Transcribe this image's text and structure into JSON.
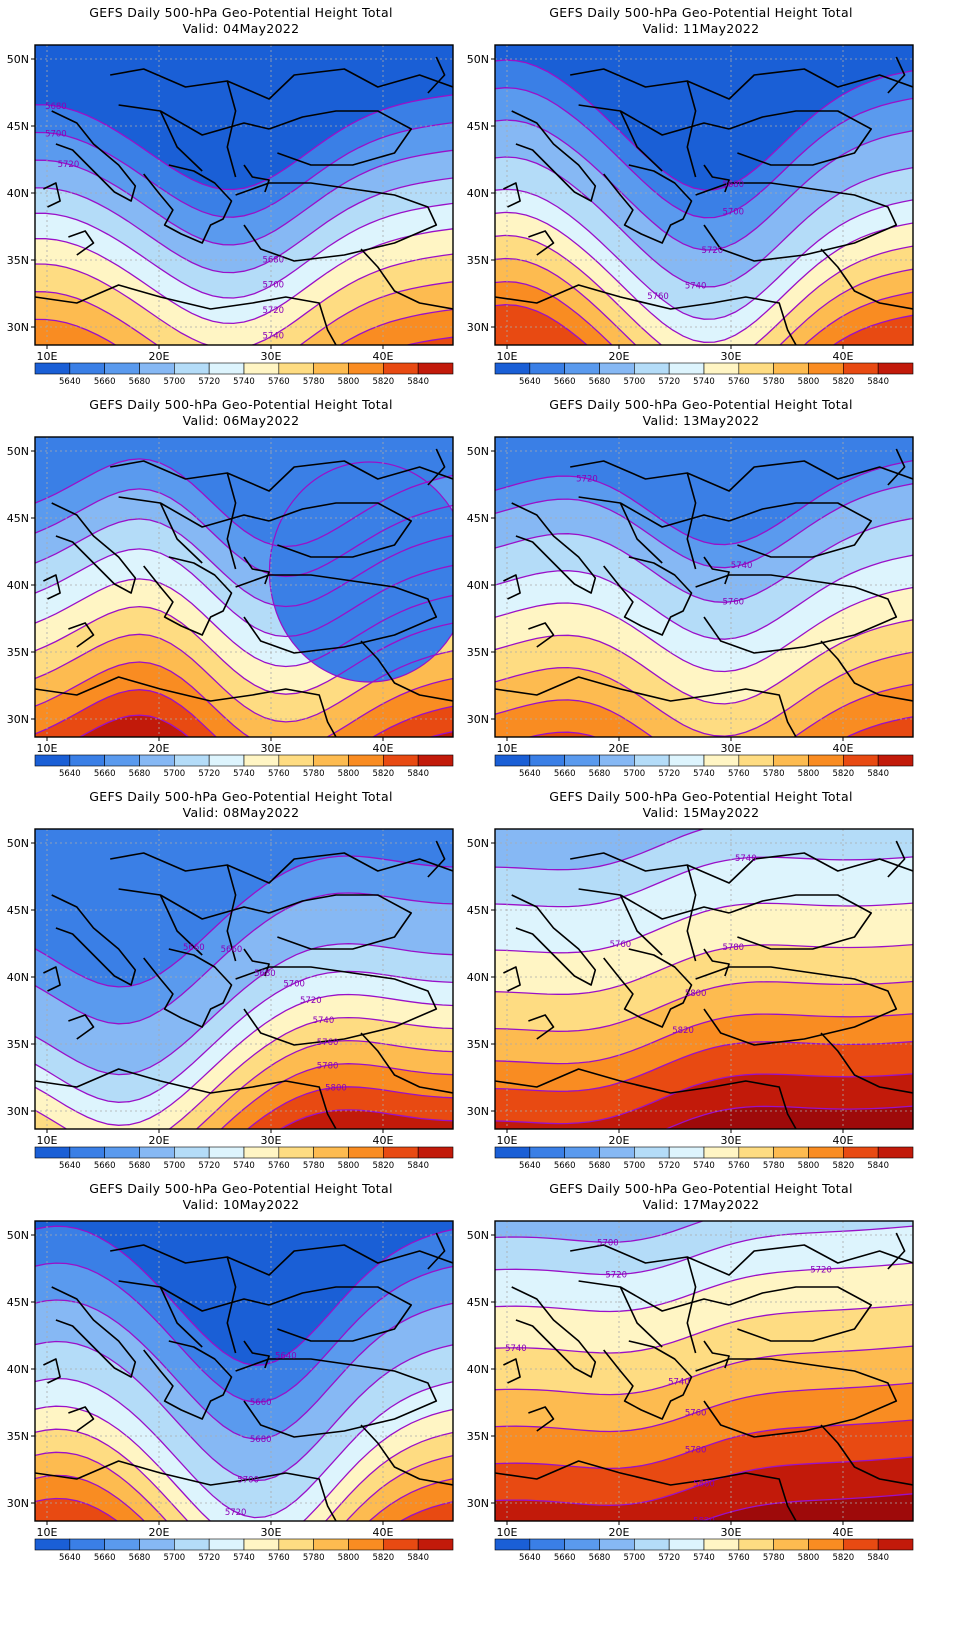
{
  "colors": {
    "fill_scale": [
      "#1a5fd6",
      "#3a7fe6",
      "#5a9aee",
      "#86b8f4",
      "#b4dcf8",
      "#ddf4fd",
      "#fff5c4",
      "#fedc82",
      "#fdbb50",
      "#f98c22",
      "#e84a12",
      "#c21a0a",
      "#9e0a0a"
    ],
    "contour": "#9a10c8",
    "contour_label": "#8a00b8",
    "coast": "#000000"
  },
  "map": {
    "lon_ticks": [
      "10E",
      "20E",
      "30E",
      "40E"
    ],
    "lat_ticks": [
      "50N",
      "45N",
      "40N",
      "35N",
      "30N"
    ]
  },
  "colorbar": {
    "labels": [
      "5640",
      "5660",
      "5680",
      "5700",
      "5720",
      "5740",
      "5760",
      "5780",
      "5800",
      "5820",
      "5840"
    ]
  },
  "panels": [
    {
      "title": "GEFS Daily 500-hPa Geo-Potential Height Total",
      "valid": "Valid: 04May2022",
      "levels": [
        [
          13,
          1
        ],
        [
          25,
          2
        ],
        [
          37,
          3
        ],
        [
          49,
          4
        ],
        [
          60,
          5
        ],
        [
          71,
          6
        ],
        [
          82,
          7
        ],
        [
          94,
          8
        ],
        [
          106,
          9
        ],
        [
          118,
          10
        ]
      ],
      "trough": 32,
      "trough_x": 0.48,
      "ridge": -14,
      "ridge_x": 0.0,
      "low": 0,
      "labels": [
        [
          "5680",
          0.05,
          "w"
        ],
        [
          "5700",
          0.05,
          "w"
        ],
        [
          "5720",
          0.08,
          "w"
        ],
        [
          "5680",
          0.57,
          ""
        ],
        [
          "5700",
          0.57,
          ""
        ],
        [
          "5720",
          0.57,
          ""
        ],
        [
          "5740",
          0.57,
          ""
        ],
        [
          "5760",
          0.56,
          ""
        ],
        [
          "5780",
          0.54,
          ""
        ]
      ]
    },
    {
      "title": "GEFS Daily 500-hPa Geo-Potential Height Total",
      "valid": "Valid: 11May2022",
      "levels": [
        [
          2,
          1
        ],
        [
          14,
          2
        ],
        [
          28,
          3
        ],
        [
          44,
          4
        ],
        [
          58,
          5
        ],
        [
          68,
          6
        ],
        [
          78,
          7
        ],
        [
          88,
          8
        ],
        [
          98,
          9
        ],
        [
          108,
          10
        ]
      ],
      "trough": 44,
      "trough_x": 0.52,
      "ridge": -22,
      "ridge_x": 0.02,
      "low": 0,
      "labels": [
        [
          "5680",
          0.57,
          ""
        ],
        [
          "5700",
          0.57,
          ""
        ],
        [
          "5720",
          0.52,
          ""
        ],
        [
          "5740",
          0.48,
          ""
        ],
        [
          "5760",
          0.39,
          ""
        ]
      ]
    },
    {
      "title": "GEFS Daily 500-hPa Geo-Potential Height Total",
      "valid": "Valid: 06May2022",
      "levels": [
        [
          7,
          2
        ],
        [
          20,
          3
        ],
        [
          33,
          4
        ],
        [
          46,
          5
        ],
        [
          59,
          6
        ],
        [
          71,
          7
        ],
        [
          83,
          8
        ],
        [
          95,
          9
        ],
        [
          107,
          10
        ],
        [
          118,
          11
        ]
      ],
      "trough": 28,
      "trough_x": 0.58,
      "ridge": -24,
      "ridge_x": 0.28,
      "low": 1,
      "labels": []
    },
    {
      "title": "GEFS Daily 500-hPa Geo-Potential Height Total",
      "valid": "Valid: 13May2022",
      "levels": [
        [
          1,
          2
        ],
        [
          11,
          3
        ],
        [
          26,
          4
        ],
        [
          42,
          5
        ],
        [
          56,
          6
        ],
        [
          70,
          7
        ],
        [
          84,
          8
        ],
        [
          98,
          9
        ],
        [
          112,
          10
        ],
        [
          124,
          11
        ]
      ],
      "trough": 30,
      "trough_x": 0.55,
      "ridge": -10,
      "ridge_x": 0.2,
      "low": 0,
      "labels": [
        [
          "5720",
          0.22,
          ""
        ],
        [
          "5740",
          0.59,
          ""
        ],
        [
          "5760",
          0.57,
          ""
        ]
      ]
    },
    {
      "title": "GEFS Daily 500-hPa Geo-Potential Height Total",
      "valid": "Valid: 08May2022",
      "levels": [
        [
          10,
          2
        ],
        [
          26,
          3
        ],
        [
          48,
          4
        ],
        [
          60,
          5
        ],
        [
          70,
          6
        ],
        [
          80,
          7
        ],
        [
          90,
          8
        ],
        [
          100,
          9
        ],
        [
          110,
          10
        ],
        [
          120,
          11
        ]
      ],
      "trough": 36,
      "trough_x": 0.22,
      "ridge": -12,
      "ridge_x": 0.7,
      "low": 0,
      "labels": [
        [
          "5660",
          0.38,
          ""
        ],
        [
          "5660",
          0.47,
          ""
        ],
        [
          "5680",
          0.55,
          ""
        ],
        [
          "5700",
          0.62,
          ""
        ],
        [
          "5720",
          0.66,
          ""
        ],
        [
          "5740",
          0.69,
          ""
        ],
        [
          "5760",
          0.7,
          ""
        ],
        [
          "5780",
          0.7,
          ""
        ],
        [
          "5800",
          0.72,
          ""
        ],
        [
          "5680",
          0.15,
          ""
        ],
        [
          "5700",
          0.13,
          ""
        ],
        [
          "5720",
          0.13,
          ""
        ],
        [
          "5740",
          0.13,
          ""
        ]
      ]
    },
    {
      "title": "GEFS Daily 500-hPa Geo-Potential Height Total",
      "valid": "Valid: 15May2022",
      "levels": [
        [
          -12,
          4
        ],
        [
          4,
          5
        ],
        [
          24,
          6
        ],
        [
          42,
          7
        ],
        [
          58,
          8
        ],
        [
          72,
          9
        ],
        [
          84,
          10
        ],
        [
          98,
          11
        ],
        [
          112,
          12
        ]
      ],
      "trough": -8,
      "trough_x": 0.55,
      "ridge": 8,
      "ridge_x": 0.25,
      "low": 0,
      "labels": [
        [
          "5720",
          0.6,
          ""
        ],
        [
          "5740",
          0.6,
          ""
        ],
        [
          "5760",
          0.3,
          ""
        ],
        [
          "5780",
          0.57,
          ""
        ],
        [
          "5800",
          0.48,
          ""
        ],
        [
          "5820",
          0.45,
          ""
        ]
      ]
    },
    {
      "title": "GEFS Daily 500-hPa Geo-Potential Height Total",
      "valid": "Valid: 10May2022",
      "levels": [
        [
          -6,
          1
        ],
        [
          10,
          2
        ],
        [
          26,
          3
        ],
        [
          44,
          4
        ],
        [
          60,
          5
        ],
        [
          72,
          6
        ],
        [
          82,
          7
        ],
        [
          92,
          8
        ],
        [
          102,
          9
        ],
        [
          112,
          10
        ]
      ],
      "trough": 52,
      "trough_x": 0.54,
      "ridge": -18,
      "ridge_x": 0.05,
      "low": 0,
      "labels": [
        [
          "5640",
          0.6,
          ""
        ],
        [
          "5660",
          0.54,
          ""
        ],
        [
          "5680",
          0.54,
          ""
        ],
        [
          "5700",
          0.51,
          ""
        ],
        [
          "5720",
          0.48,
          ""
        ],
        [
          "5740",
          0.45,
          ""
        ],
        [
          "5760",
          0.43,
          ""
        ]
      ]
    },
    {
      "title": "GEFS Daily 500-hPa Geo-Potential Height Total",
      "valid": "Valid: 17May2022",
      "levels": [
        [
          -20,
          4
        ],
        [
          -6,
          5
        ],
        [
          10,
          6
        ],
        [
          28,
          7
        ],
        [
          46,
          8
        ],
        [
          62,
          9
        ],
        [
          78,
          10
        ],
        [
          94,
          11
        ],
        [
          110,
          12
        ]
      ],
      "trough": -4,
      "trough_x": 0.55,
      "ridge": 10,
      "ridge_x": 0.35,
      "low": 0,
      "labels": [
        [
          "5700",
          0.27,
          ""
        ],
        [
          "5720",
          0.29,
          ""
        ],
        [
          "5720",
          0.78,
          ""
        ],
        [
          "5740",
          0.05,
          ""
        ],
        [
          "5740",
          0.44,
          ""
        ],
        [
          "5760",
          0.48,
          ""
        ],
        [
          "5780",
          0.48,
          ""
        ],
        [
          "5800",
          0.5,
          ""
        ],
        [
          "5820",
          0.5,
          ""
        ]
      ]
    }
  ]
}
